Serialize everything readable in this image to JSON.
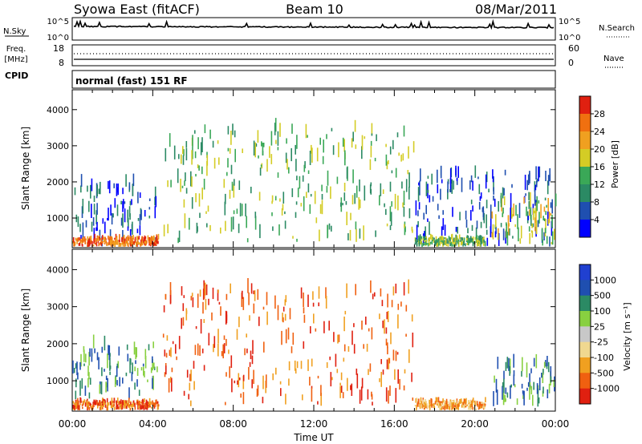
{
  "header": {
    "station": "Syowa East (fitACF)",
    "beam": "Beam 10",
    "date": "08/Mar/2011"
  },
  "nsky_panel": {
    "left_label": "N.Sky",
    "right_label": "N.Search",
    "tick_top": "10^5",
    "tick_bottom": "10^0",
    "right_tick_top": "10^5",
    "right_tick_bottom": "10^0"
  },
  "freq_panel": {
    "label_line1": "Freq.",
    "label_line2": "[MHz]",
    "tick_top": "18",
    "tick_bottom": "8",
    "right_tick_top": "60",
    "right_tick_bottom": "0",
    "right_label": "Nave"
  },
  "cpid_panel": {
    "label": "CPID",
    "mode_text": "normal (fast) 151 RF"
  },
  "colors": {
    "power": [
      "#0000ff",
      "#1f4fb0",
      "#2b8a64",
      "#3aa857",
      "#d4cc25",
      "#f0a020",
      "#f07010",
      "#e02010"
    ],
    "velocity": [
      "#e02010",
      "#f06010",
      "#f0a020",
      "#f0d890",
      "#c8c8c8",
      "#88d040",
      "#2b8a64",
      "#1f4fb0",
      "#2040d0"
    ]
  },
  "chart_data": [
    {
      "type": "heatmap",
      "title": "",
      "xlabel": "",
      "ylabel": "Slant Range [km]",
      "xlim": [
        0,
        24
      ],
      "ylim": [
        180,
        4550
      ],
      "x_tick_labels": [
        "00:00",
        "04:00",
        "08:00",
        "12:00",
        "16:00",
        "20:00",
        "00:00"
      ],
      "y_ticks": [
        1000,
        2000,
        3000,
        4000
      ],
      "colorbar_label": "Power [dB]",
      "colorbar_ticks": [
        "4",
        "8",
        "12",
        "16",
        "20",
        "24",
        "28"
      ],
      "scatter_regions_utc_hours": [
        {
          "x": [
            0.0,
            4.2
          ],
          "range_km": [
            200,
            1900
          ],
          "value_db": 6
        },
        {
          "x": [
            0.0,
            4.3
          ],
          "range_km": [
            200,
            420
          ],
          "value_db": 26
        },
        {
          "x": [
            4.5,
            17.0
          ],
          "range_km": [
            300,
            3400
          ],
          "value_db": 14
        },
        {
          "x": [
            17.0,
            24.0
          ],
          "range_km": [
            200,
            2200
          ],
          "value_db": 8
        },
        {
          "x": [
            17.0,
            20.5
          ],
          "range_km": [
            200,
            420
          ],
          "value_db": 14
        },
        {
          "x": [
            20.8,
            24.0
          ],
          "range_km": [
            200,
            1400
          ],
          "value_db": 20
        }
      ]
    },
    {
      "type": "heatmap",
      "title": "",
      "xlabel": "Time UT",
      "ylabel": "Slant Range [km]",
      "xlim": [
        0,
        24
      ],
      "ylim": [
        180,
        4550
      ],
      "x_tick_labels": [
        "00:00",
        "04:00",
        "08:00",
        "12:00",
        "16:00",
        "20:00",
        "00:00"
      ],
      "y_ticks": [
        1000,
        2000,
        3000,
        4000
      ],
      "colorbar_label": "Velocity [m s⁻¹]",
      "colorbar_ticks": [
        "1000",
        "500",
        "100",
        "25",
        "-25",
        "-100",
        "-500",
        "-1000"
      ],
      "scatter_regions_utc_hours": [
        {
          "x": [
            0.0,
            4.2
          ],
          "range_km": [
            500,
            1900
          ],
          "value_ms": 500
        },
        {
          "x": [
            0.0,
            4.3
          ],
          "range_km": [
            200,
            420
          ],
          "value_ms": -300
        },
        {
          "x": [
            4.5,
            17.0
          ],
          "range_km": [
            300,
            3400
          ],
          "value_ms": -100
        },
        {
          "x": [
            17.0,
            20.5
          ],
          "range_km": [
            200,
            420
          ],
          "value_ms": -60
        },
        {
          "x": [
            20.8,
            24.0
          ],
          "range_km": [
            300,
            1400
          ],
          "value_ms": 300
        }
      ]
    }
  ]
}
